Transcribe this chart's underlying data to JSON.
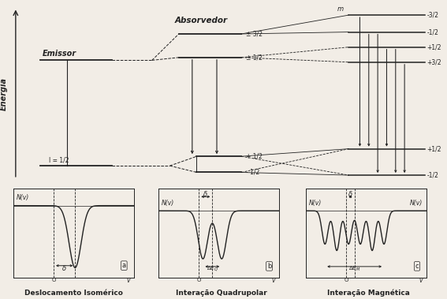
{
  "bg_color": "#f2ede6",
  "line_color": "#222222",
  "fig_width": 5.67,
  "fig_height": 3.79,
  "energia_label": "Energia",
  "emissor_label": "Emissor",
  "absorvedor_label": "Absorvedor",
  "subplot_titles": [
    "Deslocamento Isomérico",
    "Interação Quadrupolar",
    "Interação Magnética"
  ],
  "subplot_labels": [
    "a",
    "b",
    "c"
  ]
}
